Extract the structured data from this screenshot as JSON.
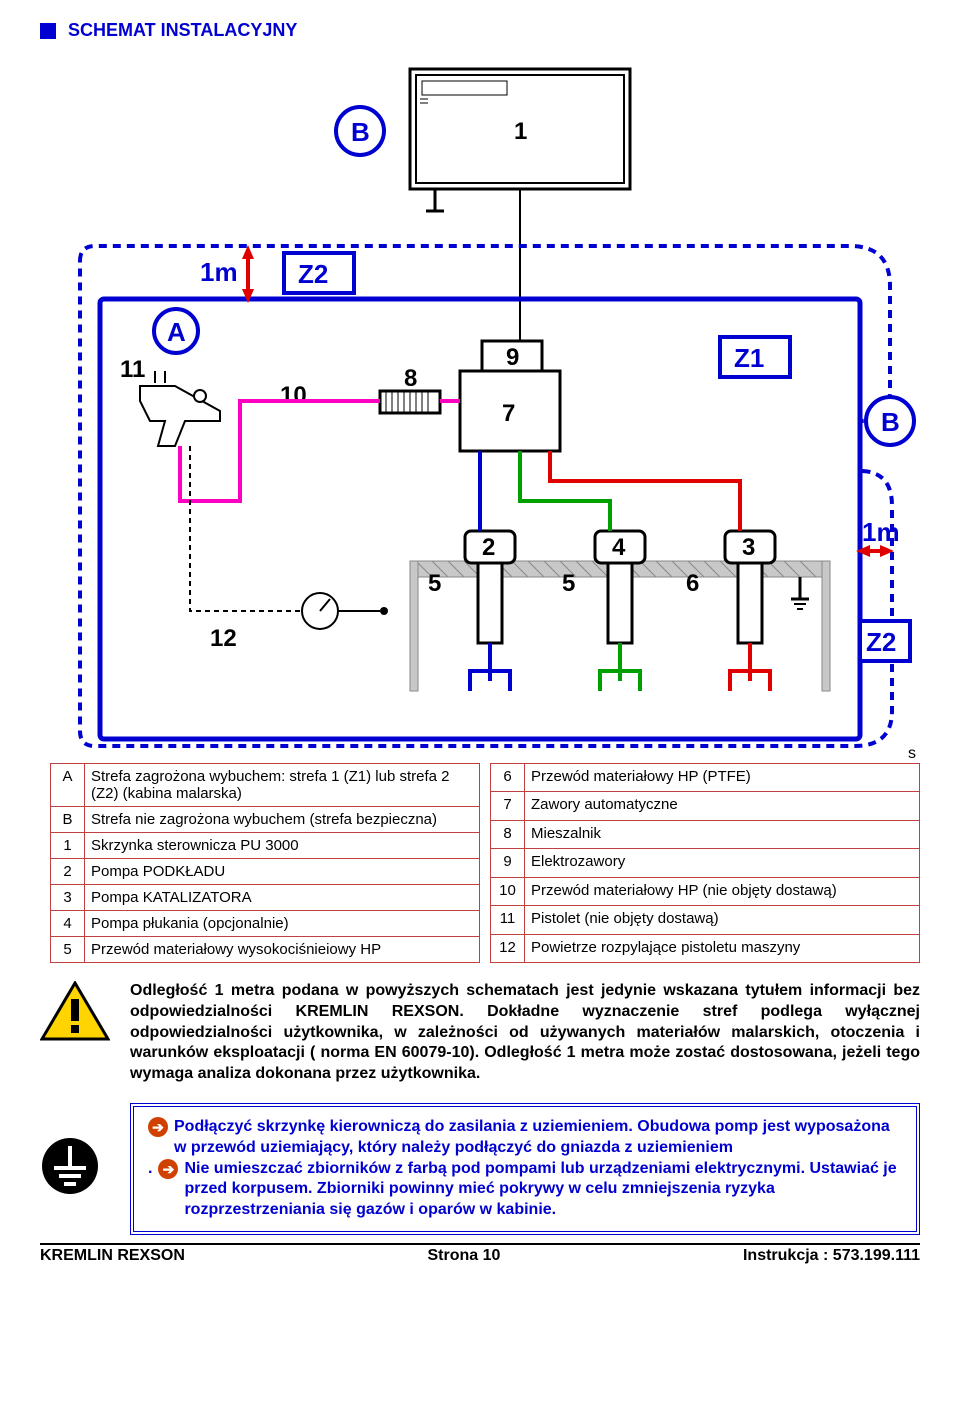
{
  "header": {
    "title": "SCHEMAT INSTALACYJNY"
  },
  "diagram": {
    "type": "installation-schematic",
    "colors": {
      "frame": "#0000d0",
      "dashed": "#0000d0",
      "magenta": "#ff00c0",
      "green": "#00a000",
      "blue": "#0000d0",
      "red": "#e00000",
      "gray": "#b0b0b0",
      "black": "#000000"
    },
    "zone_labels": {
      "z1": "Z1",
      "z2a": "Z2",
      "z2b": "Z2"
    },
    "dist_labels": {
      "top": "1m",
      "right": "1m"
    },
    "circle_labels": {
      "a": "A",
      "b_top": "B",
      "b_right": "B"
    },
    "item_labels": {
      "1": "1",
      "2": "2",
      "3": "3",
      "4": "4",
      "5a": "5",
      "5b": "5",
      "6": "6",
      "7": "7",
      "8": "8",
      "9": "9",
      "10": "10",
      "11": "11",
      "12": "12"
    }
  },
  "legend_s": "s",
  "legend_left": [
    [
      "A",
      "Strefa zagrożona wybuchem: strefa 1 (Z1) lub strefa 2 (Z2) (kabina malarska)"
    ],
    [
      "B",
      "Strefa nie zagrożona wybuchem (strefa bezpieczna)"
    ],
    [
      "1",
      "Skrzynka sterownicza PU 3000"
    ],
    [
      "2",
      "Pompa PODKŁADU"
    ],
    [
      "3",
      "Pompa KATALIZATORA"
    ],
    [
      "4",
      "Pompa płukania (opcjonalnie)"
    ],
    [
      "5",
      "Przewód materiałowy wysokociśnieiowy HP"
    ]
  ],
  "legend_right": [
    [
      "6",
      "Przewód materiałowy HP (PTFE)"
    ],
    [
      "7",
      "Zawory automatyczne"
    ],
    [
      "8",
      "Mieszalnik"
    ],
    [
      "9",
      "Elektrozawory"
    ],
    [
      "10",
      "Przewód materiałowy HP (nie objęty dostawą)"
    ],
    [
      "11",
      "Pistolet (nie objęty dostawą)"
    ],
    [
      "12",
      "Powietrze rozpylające pistoletu maszyny"
    ]
  ],
  "warning": {
    "text": "Odległość 1 metra podana w powyższych schematach jest jedynie wskazana tytułem informacji bez odpowiedzialności KREMLIN REXSON. Dokładne wyznaczenie stref podlega wyłącznej odpowiedzialności użytkownika, w zależności od używanych materiałów malarskich, otoczenia i warunków eksploatacji ( norma EN 60079-10). Odległość 1 metra może zostać dostosowana, jeżeli tego wymaga analiza dokonana przez użytkownika."
  },
  "info": {
    "line1": "Podłączyć skrzynkę kierowniczą do zasilania z uziemieniem. Obudowa pomp jest wyposażona w przewód uziemiający, który należy podłączyć do gniazda z uziemieniem",
    "dot": ".",
    "line2": "Nie umieszczać zbiorników z farbą pod pompami lub urządzeniami elektrycznymi. Ustawiać je przed korpusem. Zbiorniki powinny mieć pokrywy w celu zmniejszenia ryzyka rozprzestrzeniania się gazów i oparów w kabinie."
  },
  "footer": {
    "left": "KREMLIN REXSON",
    "center": "Strona 10",
    "right": "Instrukcja : 573.199.111"
  }
}
